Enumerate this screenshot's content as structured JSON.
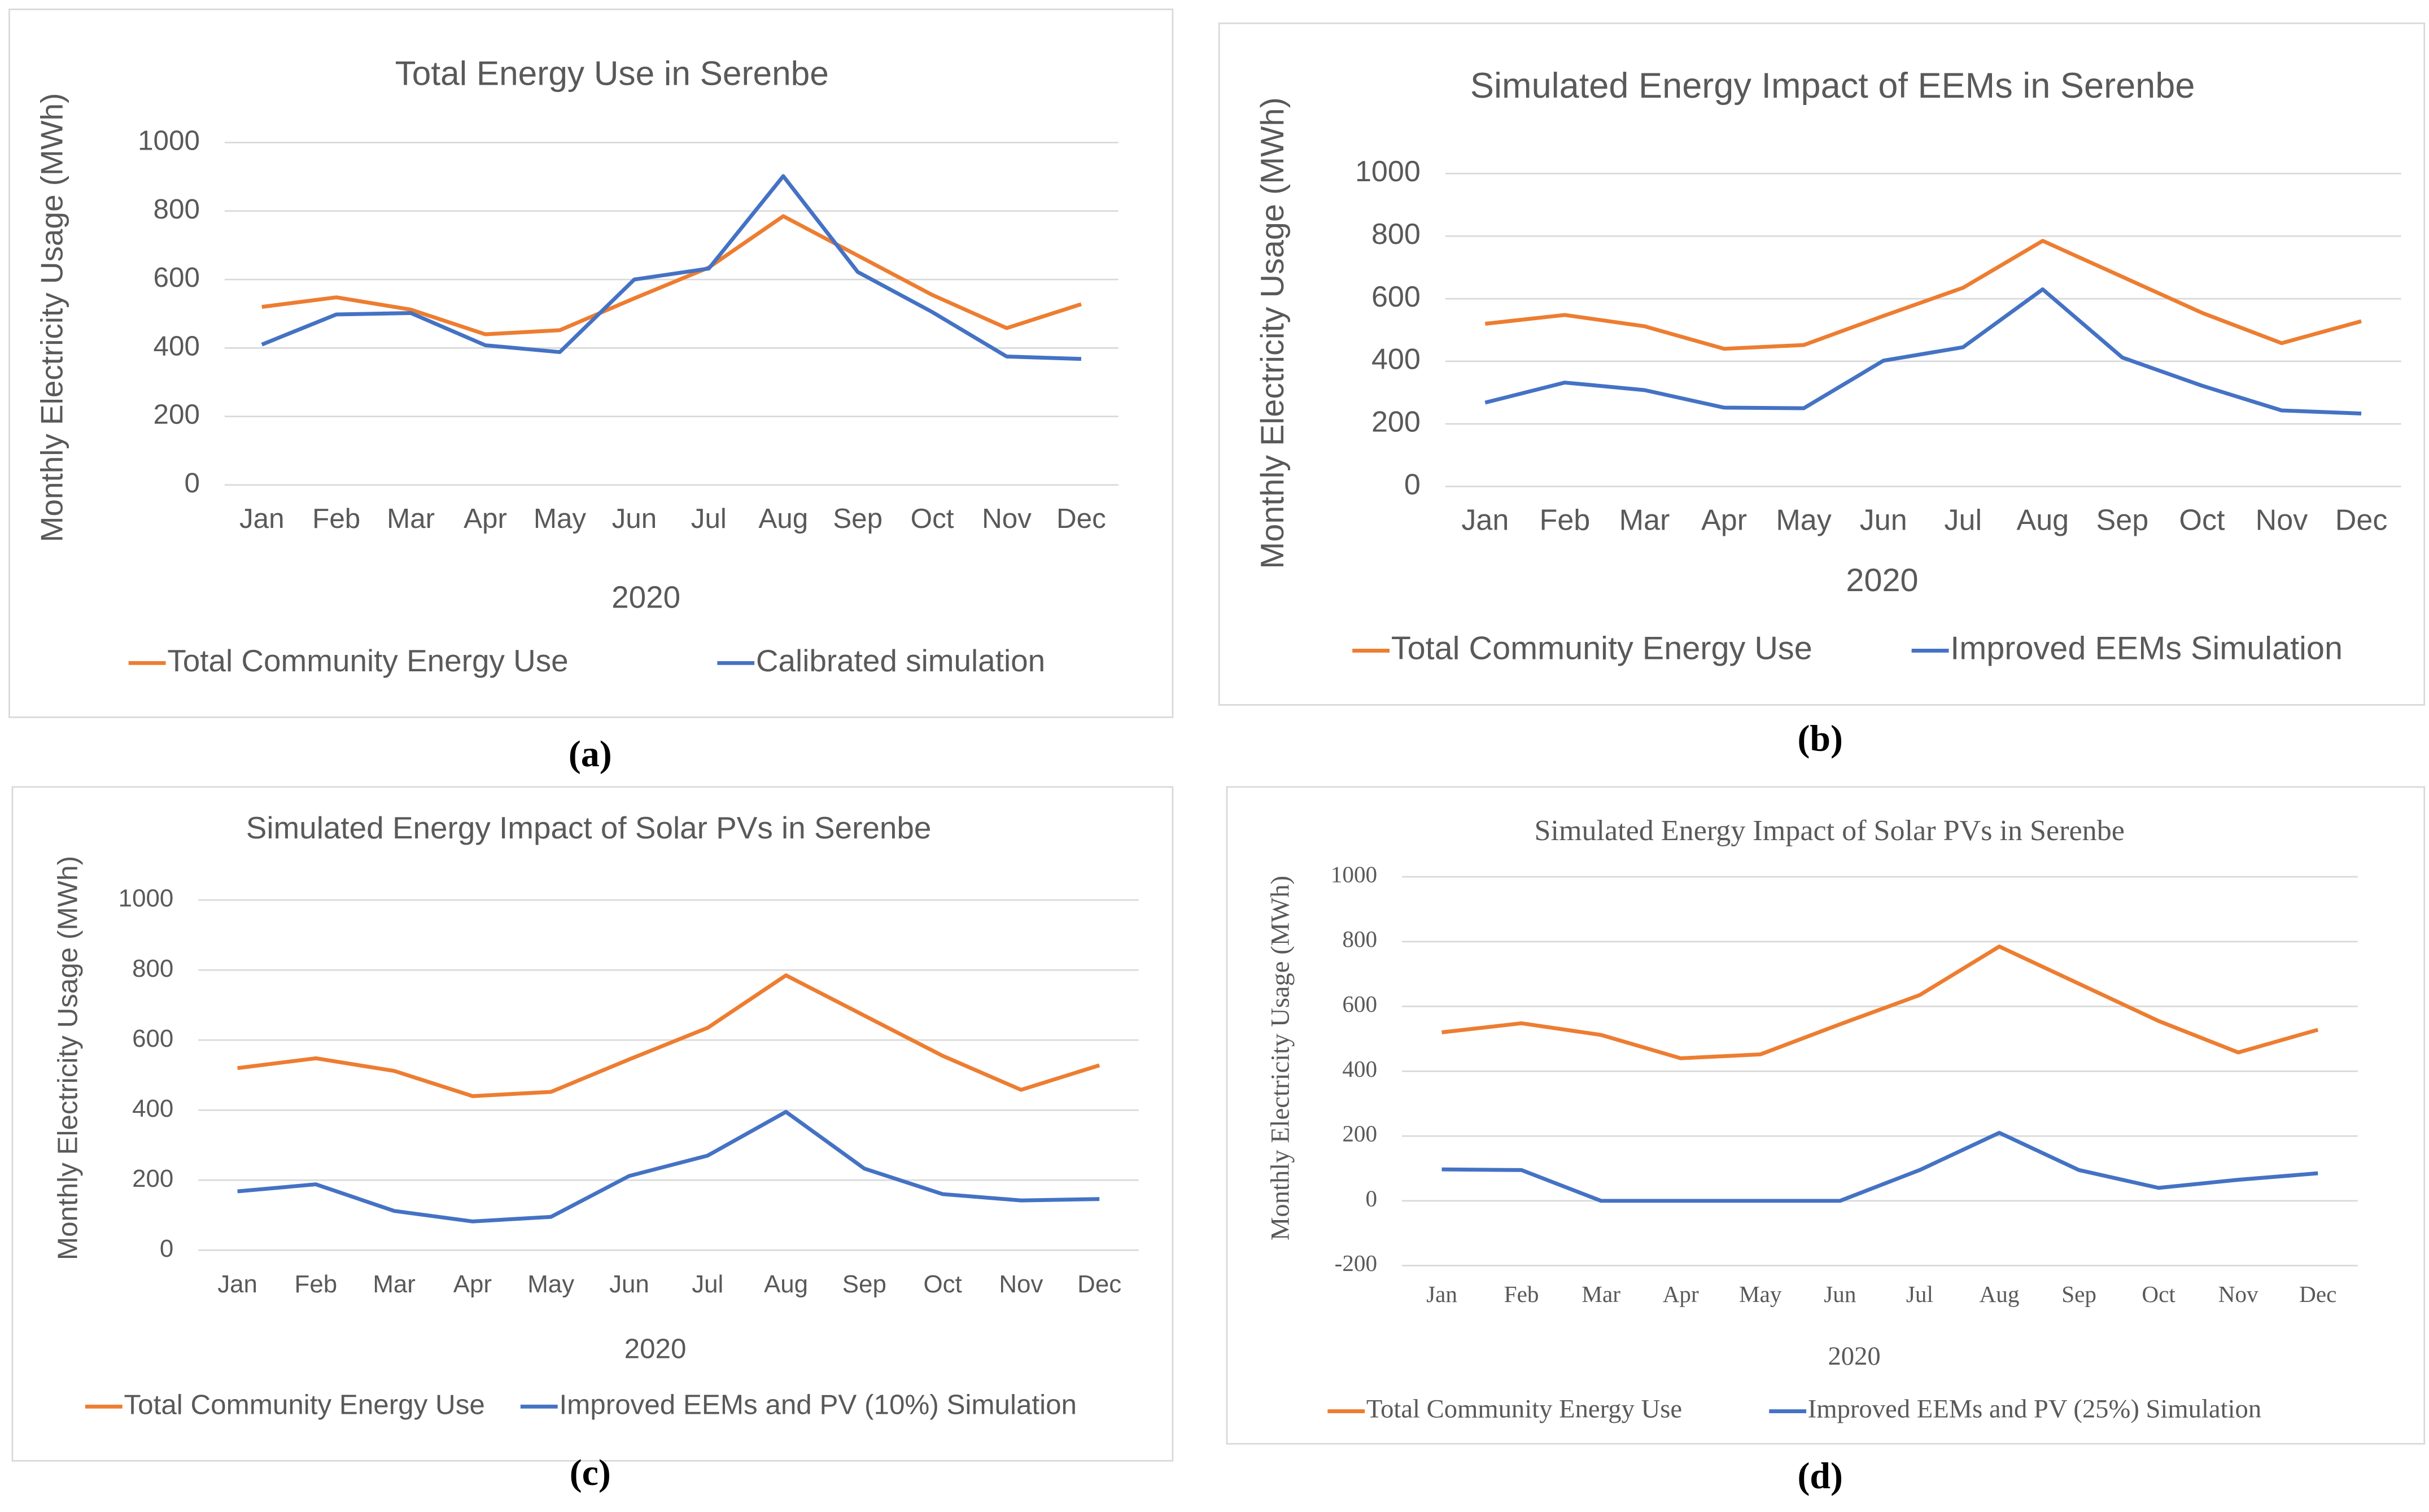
{
  "chart_data": [
    {
      "type": "line",
      "title": "Total Energy Use in Serenbe",
      "caption": "(a)",
      "font": "sans",
      "y_label": "Monthly Electricity Usage (MWh)",
      "x_label": "2020",
      "categories": [
        "Jan",
        "Feb",
        "Mar",
        "Apr",
        "May",
        "Jun",
        "Jul",
        "Aug",
        "Sep",
        "Oct",
        "Nov",
        "Dec"
      ],
      "ylim": [
        0,
        1000
      ],
      "yticks": [
        0,
        200,
        400,
        600,
        800,
        1000
      ],
      "grid": true,
      "legend": "bottom",
      "series": [
        {
          "name": "Total Community Energy Use",
          "color": "#ed7d31",
          "values": [
            520,
            548,
            512,
            440,
            452,
            545,
            635,
            785,
            670,
            555,
            458,
            528
          ]
        },
        {
          "name": "Calibrated simulation",
          "color": "#4472c4",
          "values": [
            410,
            498,
            502,
            408,
            388,
            600,
            632,
            902,
            622,
            505,
            375,
            368
          ]
        }
      ]
    },
    {
      "type": "line",
      "title": "Simulated Energy Impact of EEMs in Serenbe",
      "caption": "(b)",
      "font": "sans",
      "y_label": "Monthly Electricity Usage (MWh)",
      "x_label": "2020",
      "categories": [
        "Jan",
        "Feb",
        "Mar",
        "Apr",
        "May",
        "Jun",
        "Jul",
        "Aug",
        "Sep",
        "Oct",
        "Nov",
        "Dec"
      ],
      "ylim": [
        0,
        1000
      ],
      "yticks": [
        0,
        200,
        400,
        600,
        800,
        1000
      ],
      "grid": true,
      "legend": "bottom",
      "series": [
        {
          "name": "Total Community Energy Use",
          "color": "#ed7d31",
          "values": [
            520,
            548,
            512,
            440,
            452,
            545,
            635,
            785,
            670,
            555,
            458,
            528
          ]
        },
        {
          "name": "Improved EEMs Simulation",
          "color": "#4472c4",
          "values": [
            268,
            332,
            308,
            252,
            250,
            402,
            445,
            630,
            412,
            322,
            243,
            233
          ]
        }
      ]
    },
    {
      "type": "line",
      "title": "Simulated Energy Impact of Solar PVs in Serenbe",
      "caption": "(c)",
      "font": "sans",
      "y_label": "Monthly Electricity Usage (MWh)",
      "x_label": "2020",
      "categories": [
        "Jan",
        "Feb",
        "Mar",
        "Apr",
        "May",
        "Jun",
        "Jul",
        "Aug",
        "Sep",
        "Oct",
        "Nov",
        "Dec"
      ],
      "ylim": [
        0,
        1000
      ],
      "yticks": [
        0,
        200,
        400,
        600,
        800,
        1000
      ],
      "grid": true,
      "legend": "bottom",
      "series": [
        {
          "name": "Total Community Energy Use",
          "color": "#ed7d31",
          "values": [
            520,
            548,
            512,
            440,
            452,
            545,
            635,
            785,
            670,
            555,
            458,
            528
          ]
        },
        {
          "name": "Improved EEMs and PV (10%) Simulation",
          "color": "#4472c4",
          "values": [
            168,
            188,
            112,
            82,
            95,
            212,
            270,
            395,
            233,
            160,
            142,
            146
          ]
        }
      ]
    },
    {
      "type": "line",
      "title": "Simulated Energy Impact of Solar PVs in Serenbe",
      "caption": "(d)",
      "font": "serif",
      "y_label": "Monthly Electricity Usage (MWh)",
      "x_label": "2020",
      "categories": [
        "Jan",
        "Feb",
        "Mar",
        "Apr",
        "May",
        "Jun",
        "Jul",
        "Aug",
        "Sep",
        "Oct",
        "Nov",
        "Dec"
      ],
      "ylim": [
        -200,
        1000
      ],
      "yticks": [
        -200,
        0,
        200,
        400,
        600,
        800,
        1000
      ],
      "grid": true,
      "legend": "bottom",
      "series": [
        {
          "name": "Total Community Energy Use",
          "color": "#ed7d31",
          "values": [
            520,
            548,
            512,
            440,
            452,
            545,
            635,
            785,
            670,
            555,
            458,
            528
          ]
        },
        {
          "name": "Improved EEMs and PV (25%) Simulation",
          "color": "#4472c4",
          "values": [
            97,
            95,
            0,
            0,
            0,
            0,
            95,
            210,
            95,
            40,
            65,
            85
          ]
        }
      ]
    }
  ]
}
